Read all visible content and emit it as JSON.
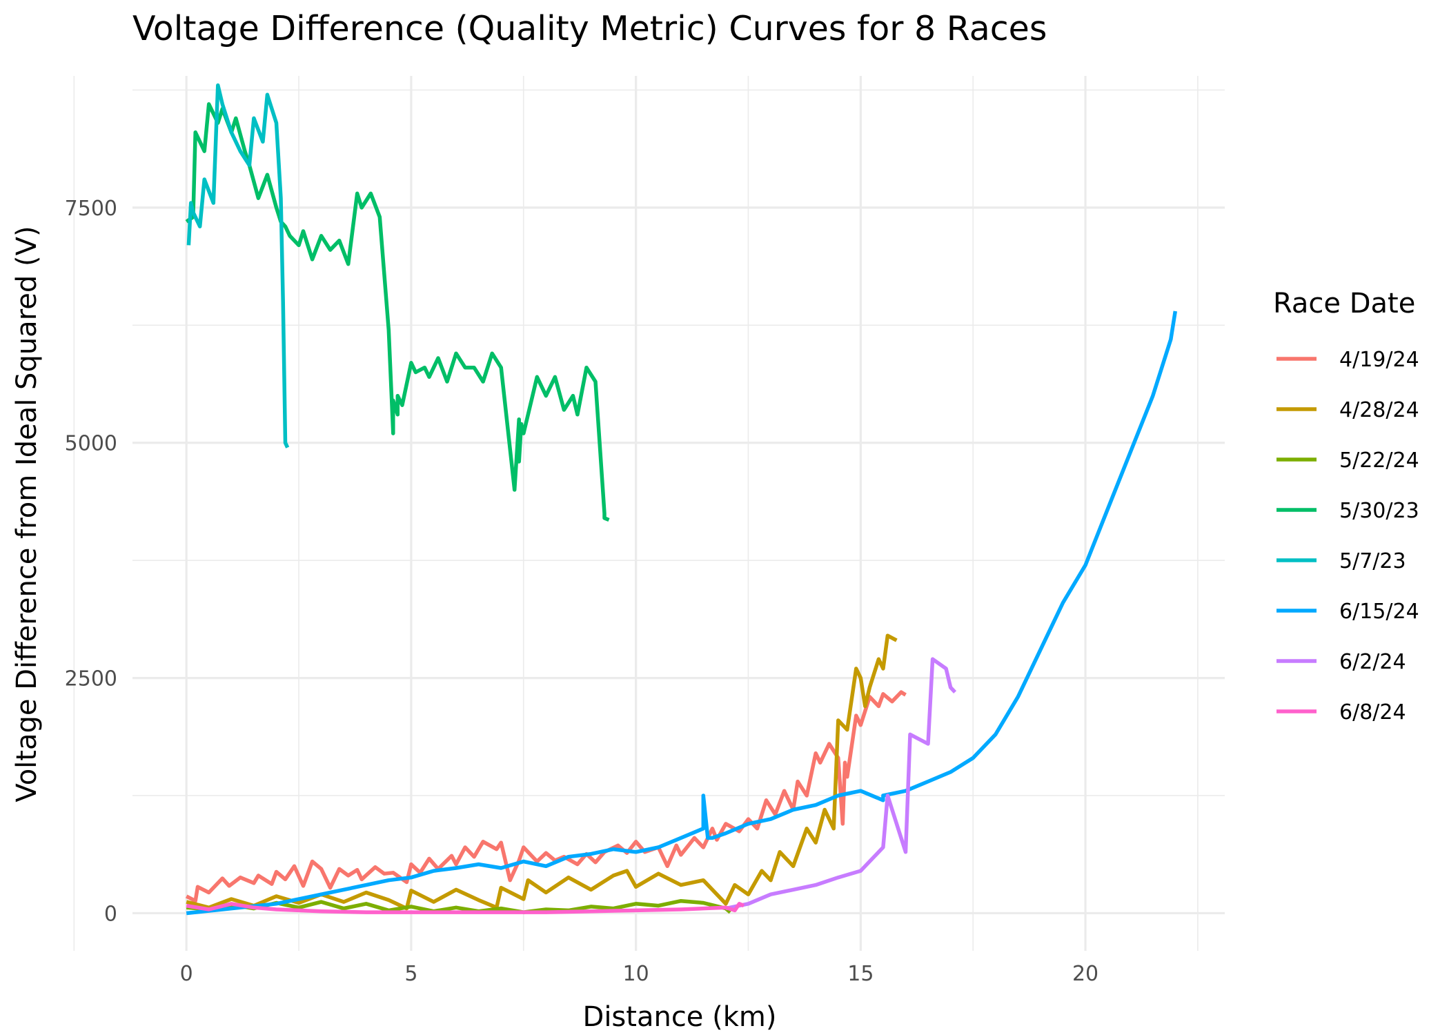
{
  "chart_data": {
    "type": "line",
    "title": "Voltage Difference (Quality Metric) Curves for 8 Races",
    "xlabel": "Distance (km)",
    "ylabel": "Voltage Difference from Ideal Squared (V)",
    "xlim": [
      -1.2,
      23.1
    ],
    "ylim": [
      -400,
      8900
    ],
    "x_ticks": [
      0,
      5,
      10,
      15,
      20
    ],
    "x_tick_labels": [
      "0",
      "5",
      "10",
      "15",
      "20"
    ],
    "y_ticks": [
      0,
      2500,
      5000,
      7500
    ],
    "y_tick_labels": [
      "0",
      "2500",
      "5000",
      "7500"
    ],
    "grid": true,
    "legend": {
      "title": "Race Date",
      "position": "right"
    },
    "series": [
      {
        "name": "4/19/24",
        "color": "#F8766D",
        "x": [
          0.0,
          0.2,
          0.25,
          0.5,
          0.8,
          0.95,
          1.2,
          1.5,
          1.6,
          1.9,
          2.0,
          2.2,
          2.4,
          2.6,
          2.8,
          3.0,
          3.2,
          3.4,
          3.6,
          3.8,
          3.9,
          4.2,
          4.4,
          4.6,
          4.9,
          5.0,
          5.2,
          5.4,
          5.6,
          5.9,
          6.0,
          6.2,
          6.4,
          6.6,
          6.9,
          7.0,
          7.2,
          7.4,
          7.5,
          7.8,
          8.0,
          8.2,
          8.4,
          8.7,
          8.9,
          9.1,
          9.3,
          9.6,
          9.8,
          10.0,
          10.2,
          10.5,
          10.7,
          10.9,
          11.0,
          11.3,
          11.5,
          11.7,
          11.8,
          12.0,
          12.3,
          12.5,
          12.7,
          12.9,
          13.1,
          13.3,
          13.5,
          13.6,
          13.8,
          14.0,
          14.1,
          14.3,
          14.5,
          14.6,
          14.65,
          14.7,
          14.9,
          15.0,
          15.2,
          15.4,
          15.5,
          15.7,
          15.9,
          16.0
        ],
        "y": [
          180,
          130,
          280,
          220,
          370,
          290,
          380,
          320,
          400,
          310,
          440,
          360,
          500,
          290,
          550,
          470,
          270,
          470,
          400,
          460,
          360,
          490,
          420,
          430,
          330,
          520,
          430,
          580,
          470,
          610,
          520,
          700,
          600,
          760,
          680,
          750,
          350,
          560,
          700,
          550,
          640,
          560,
          600,
          520,
          630,
          540,
          650,
          720,
          640,
          760,
          650,
          700,
          500,
          720,
          620,
          800,
          700,
          900,
          780,
          950,
          870,
          1000,
          900,
          1200,
          1050,
          1300,
          1100,
          1400,
          1250,
          1700,
          1600,
          1800,
          1650,
          950,
          1600,
          1450,
          2100,
          2000,
          2300,
          2200,
          2330,
          2250,
          2350,
          2320
        ]
      },
      {
        "name": "4/28/24",
        "color": "#C49A00",
        "x": [
          0.0,
          0.5,
          1.0,
          1.5,
          2.0,
          2.5,
          3.0,
          3.5,
          4.0,
          4.5,
          4.9,
          5.0,
          5.5,
          6.0,
          6.5,
          6.9,
          7.0,
          7.5,
          7.6,
          8.0,
          8.5,
          9.0,
          9.5,
          9.8,
          10.0,
          10.5,
          11.0,
          11.5,
          11.8,
          12.0,
          12.2,
          12.5,
          12.8,
          13.0,
          13.2,
          13.5,
          13.8,
          14.0,
          14.2,
          14.4,
          14.5,
          14.7,
          14.9,
          15.0,
          15.1,
          15.2,
          15.4,
          15.5,
          15.6,
          15.8
        ],
        "y": [
          120,
          60,
          150,
          80,
          180,
          110,
          200,
          120,
          220,
          140,
          50,
          240,
          120,
          250,
          140,
          60,
          270,
          150,
          350,
          220,
          380,
          250,
          400,
          450,
          280,
          420,
          300,
          350,
          200,
          100,
          300,
          200,
          450,
          350,
          650,
          500,
          900,
          750,
          1100,
          900,
          2050,
          1950,
          2600,
          2500,
          2200,
          2400,
          2700,
          2600,
          2950,
          2900
        ]
      },
      {
        "name": "5/22/24",
        "color": "#7CAE00",
        "x": [
          0.0,
          0.5,
          1.0,
          1.5,
          2.0,
          2.5,
          3.0,
          3.5,
          4.0,
          4.5,
          5.0,
          5.5,
          6.0,
          6.5,
          7.0,
          7.5,
          8.0,
          8.5,
          9.0,
          9.5,
          10.0,
          10.5,
          11.0,
          11.5,
          12.0,
          12.1
        ],
        "y": [
          60,
          40,
          90,
          50,
          110,
          60,
          120,
          50,
          100,
          30,
          70,
          20,
          60,
          20,
          50,
          10,
          40,
          30,
          70,
          50,
          100,
          80,
          130,
          110,
          50,
          10
        ]
      },
      {
        "name": "5/30/23",
        "color": "#00BE67",
        "x": [
          0.0,
          0.15,
          0.2,
          0.4,
          0.5,
          0.7,
          0.8,
          1.0,
          1.1,
          1.3,
          1.4,
          1.6,
          1.8,
          2.0,
          2.1,
          2.2,
          2.3,
          2.5,
          2.6,
          2.8,
          3.0,
          3.2,
          3.4,
          3.6,
          3.8,
          3.9,
          4.1,
          4.3,
          4.5,
          4.6,
          4.6,
          4.7,
          4.7,
          4.8,
          5.0,
          5.1,
          5.3,
          5.4,
          5.6,
          5.8,
          6.0,
          6.2,
          6.4,
          6.6,
          6.8,
          7.0,
          7.3,
          7.4,
          7.4,
          7.45,
          7.5,
          7.8,
          8.0,
          8.2,
          8.4,
          8.6,
          8.7,
          8.9,
          9.1,
          9.3,
          9.3,
          9.4
        ],
        "y": [
          7350,
          7400,
          8300,
          8100,
          8600,
          8400,
          8550,
          8300,
          8450,
          8100,
          7950,
          7600,
          7850,
          7500,
          7350,
          7300,
          7200,
          7100,
          7250,
          6950,
          7200,
          7050,
          7150,
          6900,
          7650,
          7500,
          7650,
          7400,
          6200,
          5100,
          5450,
          5300,
          5500,
          5400,
          5850,
          5750,
          5800,
          5700,
          5900,
          5650,
          5950,
          5800,
          5800,
          5650,
          5950,
          5800,
          4500,
          5250,
          4800,
          5200,
          5100,
          5700,
          5500,
          5700,
          5350,
          5500,
          5300,
          5800,
          5650,
          4250,
          4200,
          4180
        ]
      },
      {
        "name": "5/7/23",
        "color": "#00BFC4",
        "x": [
          0.05,
          0.1,
          0.15,
          0.3,
          0.4,
          0.6,
          0.7,
          0.8,
          1.0,
          1.2,
          1.4,
          1.5,
          1.7,
          1.8,
          2.0,
          2.1,
          2.15,
          2.2,
          2.25
        ],
        "y": [
          7100,
          7550,
          7450,
          7300,
          7800,
          7550,
          8800,
          8600,
          8300,
          8100,
          7950,
          8450,
          8200,
          8700,
          8400,
          7600,
          6500,
          5000,
          4950
        ]
      },
      {
        "name": "6/15/24",
        "color": "#00A9FF",
        "x": [
          0.0,
          1.0,
          2.0,
          3.0,
          4.0,
          4.5,
          5.0,
          5.5,
          6.0,
          6.5,
          7.0,
          7.5,
          8.0,
          8.5,
          9.0,
          9.5,
          10.0,
          10.5,
          11.0,
          11.5,
          11.5,
          11.6,
          11.7,
          12.0,
          12.5,
          13.0,
          13.5,
          14.0,
          14.5,
          15.0,
          15.5,
          15.5,
          16.0,
          16.5,
          17.0,
          17.5,
          18.0,
          18.5,
          19.0,
          19.5,
          20.0,
          20.5,
          21.0,
          21.5,
          21.9,
          22.0
        ],
        "y": [
          0,
          50,
          100,
          200,
          300,
          350,
          380,
          450,
          480,
          520,
          480,
          550,
          500,
          600,
          630,
          680,
          650,
          700,
          800,
          900,
          1250,
          800,
          800,
          850,
          950,
          1000,
          1100,
          1150,
          1250,
          1300,
          1200,
          1250,
          1300,
          1400,
          1500,
          1650,
          1900,
          2300,
          2800,
          3300,
          3700,
          4300,
          4900,
          5500,
          6100,
          6400
        ]
      },
      {
        "name": "6/2/24",
        "color": "#C77CFF",
        "x": [
          12.0,
          12.5,
          13.0,
          13.5,
          14.0,
          14.5,
          15.0,
          15.5,
          15.6,
          16.0,
          16.1,
          16.5,
          16.6,
          16.9,
          17.0,
          17.1
        ],
        "y": [
          50,
          100,
          200,
          250,
          300,
          380,
          450,
          700,
          1250,
          650,
          1900,
          1800,
          2700,
          2600,
          2400,
          2350
        ]
      },
      {
        "name": "6/8/24",
        "color": "#FF61CC",
        "x": [
          0.0,
          0.5,
          1.0,
          1.5,
          2.0,
          3.0,
          4.0,
          5.0,
          6.0,
          7.0,
          8.0,
          9.0,
          10.0,
          11.0,
          12.0,
          12.2,
          12.3,
          12.4
        ],
        "y": [
          80,
          40,
          100,
          60,
          40,
          20,
          10,
          10,
          10,
          10,
          10,
          20,
          30,
          40,
          60,
          30,
          100,
          80
        ]
      }
    ]
  }
}
